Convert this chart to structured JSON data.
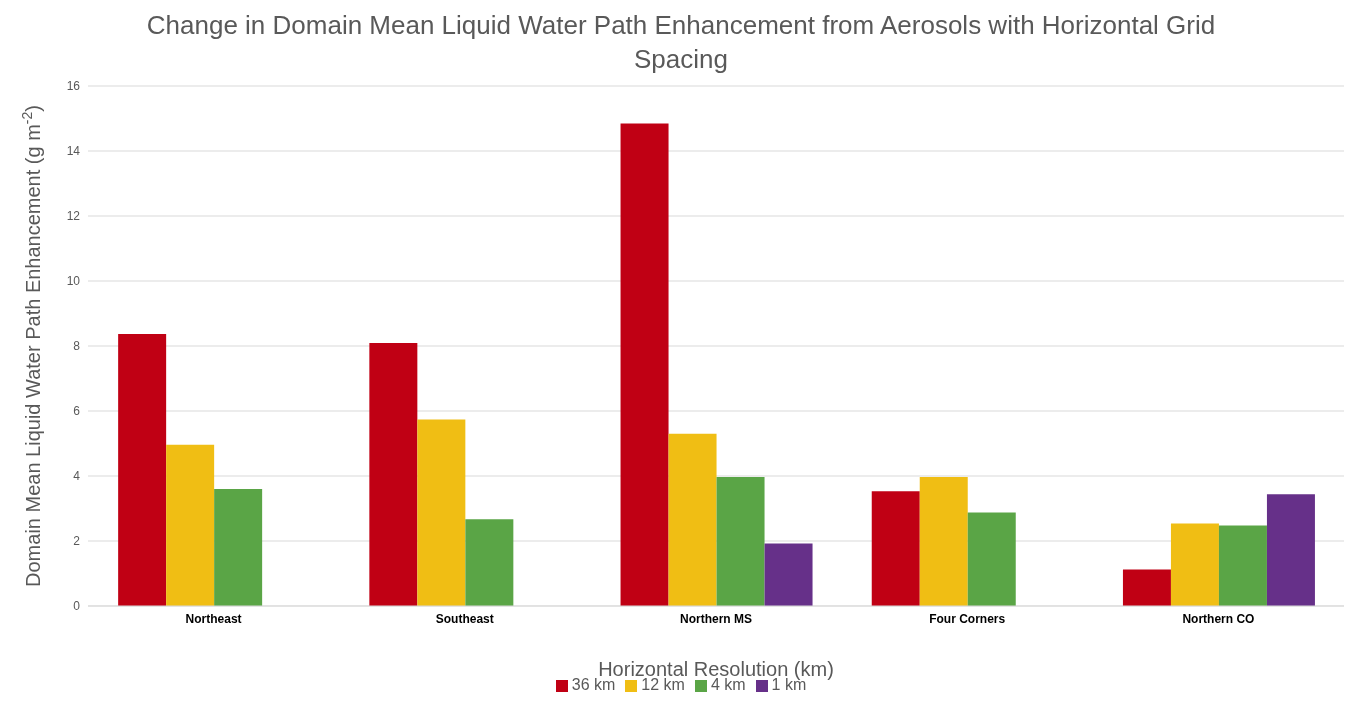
{
  "chart_data": {
    "type": "bar",
    "title": "Change in Domain Mean Liquid Water Path Enhancement from Aerosols with Horizontal Grid Spacing",
    "xlabel": "Horizontal Resolution (km)",
    "ylabel": "Domain Mean Liquid Water Path Enhancement (g m$^{-2}$)",
    "categories": [
      "Northeast",
      "Southeast",
      "Northern MS",
      "Four Corners",
      "Northern CO"
    ],
    "series": [
      {
        "name": "36 km",
        "color": "#c00014",
        "values": [
          8.37,
          8.09,
          14.85,
          3.53,
          1.12
        ]
      },
      {
        "name": "12 km",
        "color": "#f0be14",
        "values": [
          4.96,
          5.74,
          5.3,
          3.97,
          2.54
        ]
      },
      {
        "name": "4 km",
        "color": "#5aa546",
        "values": [
          3.6,
          2.67,
          3.97,
          2.88,
          2.48
        ]
      },
      {
        "name": "1 km",
        "color": "#663089",
        "values": [
          null,
          null,
          1.92,
          null,
          3.44
        ]
      }
    ],
    "ylim": [
      0,
      16
    ],
    "yticks": [
      0,
      2,
      4,
      6,
      8,
      10,
      12,
      14,
      16
    ],
    "grid": "y",
    "legend": "bottom"
  }
}
